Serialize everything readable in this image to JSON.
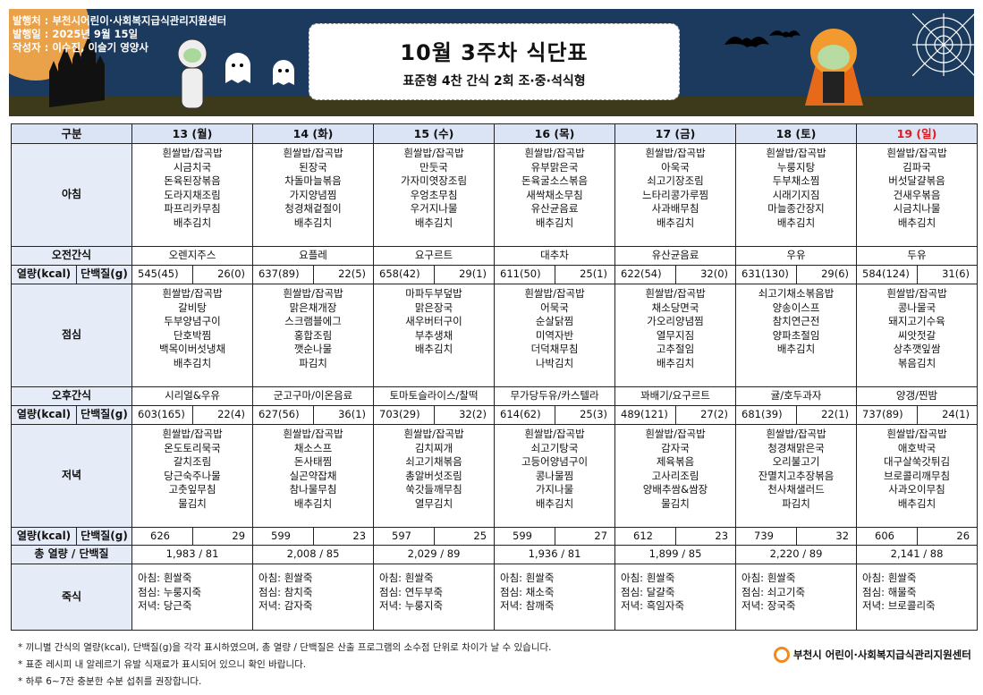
{
  "header": {
    "publisher": "발행처 : 부천시어린이·사회복지급식관리지원센터",
    "issue_date": "발행일 : 2025년 9월 15일",
    "author": "작성자 : 이수진, 이슬기 영양사",
    "title": "10월 3주차 식단표",
    "subtitle": "표준형 4찬 간식 2회 조·중·석식형"
  },
  "labels": {
    "category": "구분",
    "breakfast": "아침",
    "am_snack": "오전간식",
    "kcal": "열량(kcal)",
    "protein": "단백질(g)",
    "lunch": "점심",
    "pm_snack": "오후간식",
    "dinner": "저녁",
    "total": "총 열량 / 단백질",
    "porridge": "죽식"
  },
  "colors": {
    "sunday": "#e0191e",
    "header_bg": "#dbe4f5",
    "banner": "#1b3a5e"
  },
  "days": [
    {
      "date": "13 (월)",
      "breakfast": [
        "흰쌀밥/잡곡밥",
        "시금치국",
        "돈육된장볶음",
        "도라지채조림",
        "파프리카무침",
        "배추김치"
      ],
      "am_snack": "오렌지주스",
      "am_kcal": "545(45)",
      "am_protein": "26(0)",
      "lunch": [
        "흰쌀밥/잡곡밥",
        "갈비탕",
        "두부양념구이",
        "단호박찜",
        "백목이버섯냉채",
        "배추김치"
      ],
      "pm_snack": "시리얼&우유",
      "pm_kcal": "603(165)",
      "pm_protein": "22(4)",
      "dinner": [
        "흰쌀밥/잡곡밥",
        "온도토리묵국",
        "갈치조림",
        "당근숙주나물",
        "고춧잎무침",
        "물김치"
      ],
      "dn_kcal": "626",
      "dn_protein": "29",
      "total": "1,983  /  81",
      "porridge": [
        "아침: 흰쌀죽",
        "점심: 누룽지죽",
        "저녁: 당근죽"
      ]
    },
    {
      "date": "14 (화)",
      "breakfast": [
        "흰쌀밥/잡곡밥",
        "된장국",
        "차돌마늘볶음",
        "가지양념찜",
        "청경채겉절이",
        "배추김치"
      ],
      "am_snack": "요플레",
      "am_kcal": "637(89)",
      "am_protein": "22(5)",
      "lunch": [
        "흰쌀밥/잡곡밥",
        "맑은채개장",
        "스크램블에그",
        "홍합조림",
        "깻순나물",
        "파김치"
      ],
      "pm_snack": "군고구마/이온음료",
      "pm_kcal": "627(56)",
      "pm_protein": "36(1)",
      "dinner": [
        "흰쌀밥/잡곡밥",
        "채소스프",
        "돈사태찜",
        "실곤약잡채",
        "참나물무침",
        "배추김치"
      ],
      "dn_kcal": "599",
      "dn_protein": "23",
      "total": "2,008  /  85",
      "porridge": [
        "아침: 흰쌀죽",
        "점심: 참치죽",
        "저녁: 감자죽"
      ]
    },
    {
      "date": "15 (수)",
      "breakfast": [
        "흰쌀밥/잡곡밥",
        "만둣국",
        "가자미엿장조림",
        "우엉초무침",
        "우거지나물",
        "배추김치"
      ],
      "am_snack": "요구르트",
      "am_kcal": "658(42)",
      "am_protein": "29(1)",
      "lunch": [
        "마파두부덮밥",
        "맑은장국",
        "새우버터구이",
        "부추생채",
        "배추김치"
      ],
      "pm_snack": "토마토슬라이스/찰떡",
      "pm_kcal": "703(29)",
      "pm_protein": "32(2)",
      "dinner": [
        "흰쌀밥/잡곡밥",
        "김치찌개",
        "쇠고기채볶음",
        "총알버섯조림",
        "쑥갓들깨무침",
        "열무김치"
      ],
      "dn_kcal": "597",
      "dn_protein": "25",
      "total": "2,029  /  89",
      "porridge": [
        "아침: 흰쌀죽",
        "점심: 연두부죽",
        "저녁: 누룽지죽"
      ]
    },
    {
      "date": "16 (목)",
      "breakfast": [
        "흰쌀밥/잡곡밥",
        "유부맑은국",
        "돈육굴소스볶음",
        "새싹채소무침",
        "유산균음료",
        "배추김치"
      ],
      "am_snack": "대추차",
      "am_kcal": "611(50)",
      "am_protein": "25(1)",
      "lunch": [
        "흰쌀밥/잡곡밥",
        "어묵국",
        "순살닭찜",
        "미역자반",
        "더덕채무침",
        "나박김치"
      ],
      "pm_snack": "무가당두유/카스텔라",
      "pm_kcal": "614(62)",
      "pm_protein": "25(3)",
      "dinner": [
        "흰쌀밥/잡곡밥",
        "쇠고기탕국",
        "고등어양념구이",
        "콩나물찜",
        "가지나물",
        "배추김치"
      ],
      "dn_kcal": "599",
      "dn_protein": "27",
      "total": "1,936  /  81",
      "porridge": [
        "아침: 흰쌀죽",
        "점심: 채소죽",
        "저녁: 참깨죽"
      ]
    },
    {
      "date": "17 (금)",
      "breakfast": [
        "흰쌀밥/잡곡밥",
        "아욱국",
        "쇠고기장조림",
        "느타리콩가루찜",
        "사과배무침",
        "배추김치"
      ],
      "am_snack": "유산균음료",
      "am_kcal": "622(54)",
      "am_protein": "32(0)",
      "lunch": [
        "흰쌀밥/잡곡밥",
        "채소당면국",
        "가오리양념찜",
        "열무지짐",
        "고추절임",
        "배추김치"
      ],
      "pm_snack": "꽈배기/요구르트",
      "pm_kcal": "489(121)",
      "pm_protein": "27(2)",
      "dinner": [
        "흰쌀밥/잡곡밥",
        "감자국",
        "제육볶음",
        "고사리조림",
        "양배추쌈&쌈장",
        "물김치"
      ],
      "dn_kcal": "612",
      "dn_protein": "23",
      "total": "1,899  /  85",
      "porridge": [
        "아침: 흰쌀죽",
        "점심: 달걀죽",
        "저녁: 흑임자죽"
      ]
    },
    {
      "date": "18 (토)",
      "breakfast": [
        "흰쌀밥/잡곡밥",
        "누룽지탕",
        "두부채소찜",
        "시래기지짐",
        "마늘종간장지",
        "배추김치"
      ],
      "am_snack": "우유",
      "am_kcal": "631(130)",
      "am_protein": "29(6)",
      "lunch": [
        "쇠고기채소볶음밥",
        "양송이스프",
        "참치연근전",
        "양파초절임",
        "배추김치"
      ],
      "pm_snack": "귤/호두과자",
      "pm_kcal": "681(39)",
      "pm_protein": "22(1)",
      "dinner": [
        "흰쌀밥/잡곡밥",
        "청경채맑은국",
        "오리불고기",
        "잔멸치고추장볶음",
        "천사채샐러드",
        "파김치"
      ],
      "dn_kcal": "739",
      "dn_protein": "32",
      "total": "2,220  /  89",
      "porridge": [
        "아침: 흰쌀죽",
        "점심: 쇠고기죽",
        "저녁: 장국죽"
      ]
    },
    {
      "date": "19 (일)",
      "sunday": true,
      "breakfast": [
        "흰쌀밥/잡곡밥",
        "김파국",
        "버섯달걀볶음",
        "건새우볶음",
        "시금치나물",
        "배추김치"
      ],
      "am_snack": "두유",
      "am_kcal": "584(124)",
      "am_protein": "31(6)",
      "lunch": [
        "흰쌀밥/잡곡밥",
        "콩나물국",
        "돼지고기수육",
        "씨앗젓갈",
        "상추깻잎쌈",
        "볶음김치"
      ],
      "pm_snack": "양갱/찐밤",
      "pm_kcal": "737(89)",
      "pm_protein": "24(1)",
      "dinner": [
        "흰쌀밥/잡곡밥",
        "애호박국",
        "대구살쑥갓튀김",
        "브로콜리깨무침",
        "사과오이무침",
        "배추김치"
      ],
      "dn_kcal": "606",
      "dn_protein": "26",
      "total": "2,141  /  88",
      "porridge": [
        "아침: 흰쌀죽",
        "점심: 해물죽",
        "저녁: 브로콜리죽"
      ]
    }
  ],
  "notes": [
    "* 끼니별 간식의 열량(kcal), 단백질(g)을 각각 표시하였으며, 총 열량 / 단백질은 산출 프로그램의 소수점 단위로 차이가 날 수 있습니다.",
    "* 표준 레시피 내 알레르기 유발 식재료가 표시되어 있으니 확인 바랍니다.",
    "* 하루 6~7잔 충분한 수분 섭취를 권장합니다."
  ],
  "footer_logo": "부천시 어린이·사회복지급식관리지원센터"
}
